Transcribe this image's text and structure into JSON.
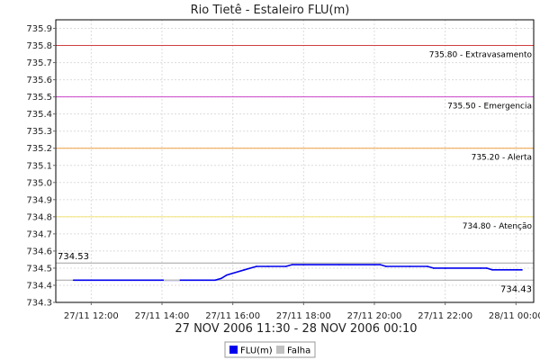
{
  "chart_data": {
    "type": "line",
    "title": "Rio Tietê - Estaleiro FLU(m)",
    "subtitle": "27 NOV 2006 11:30 - 28 NOV 2006 00:10",
    "xlabel": "",
    "ylabel": "",
    "ylim": [
      734.3,
      735.95
    ],
    "y_ticks": [
      "734.3",
      "734.4",
      "734.5",
      "734.6",
      "734.7",
      "734.8",
      "734.9",
      "735.0",
      "735.1",
      "735.2",
      "735.3",
      "735.4",
      "735.5",
      "735.6",
      "735.7",
      "735.8",
      "735.9"
    ],
    "x_ticks": [
      "27/11 12:00",
      "27/11 14:00",
      "27/11 16:00",
      "27/11 18:00",
      "27/11 20:00",
      "27/11 22:00",
      "28/11 00:00"
    ],
    "grid": true,
    "legend_placement": "bottom-center",
    "legend": [
      {
        "name": "FLU(m)",
        "color": "#0000ee"
      },
      {
        "name": "Falha",
        "color": "#c0c0c0"
      }
    ],
    "thresholds": [
      {
        "value": 735.8,
        "label": "735.80 - Extravasamento",
        "color": "#d04040"
      },
      {
        "value": 735.5,
        "label": "735.50 - Emergencia",
        "color": "#cc44cc"
      },
      {
        "value": 735.2,
        "label": "735.20 - Alerta",
        "color": "#f0a040"
      },
      {
        "value": 734.8,
        "label": "734.80 - Atenção",
        "color": "#f0e070"
      }
    ],
    "reference_lines": [
      {
        "value": 734.53,
        "label": "734.53",
        "color": "#a0a0a0",
        "label_side": "left"
      },
      {
        "value": 734.43,
        "label": "734.43",
        "color": "#a0a0a0",
        "label_side": "right"
      }
    ],
    "series": [
      {
        "name": "FLU(m)",
        "color": "#0000ee",
        "points": [
          [
            11.5,
            734.43
          ],
          [
            12.0,
            734.43
          ],
          [
            13.0,
            734.43
          ],
          [
            14.0,
            734.43
          ],
          [
            14.5,
            734.43
          ],
          [
            15.5,
            734.43
          ],
          [
            15.67,
            734.44
          ],
          [
            15.83,
            734.46
          ],
          [
            16.0,
            734.47
          ],
          [
            16.33,
            734.49
          ],
          [
            16.67,
            734.51
          ],
          [
            17.0,
            734.51
          ],
          [
            17.5,
            734.51
          ],
          [
            17.67,
            734.52
          ],
          [
            18.0,
            734.52
          ],
          [
            19.0,
            734.52
          ],
          [
            20.0,
            734.52
          ],
          [
            20.17,
            734.52
          ],
          [
            20.33,
            734.51
          ],
          [
            21.0,
            734.51
          ],
          [
            21.5,
            734.51
          ],
          [
            21.67,
            734.5
          ],
          [
            22.0,
            734.5
          ],
          [
            23.0,
            734.5
          ],
          [
            23.17,
            734.5
          ],
          [
            23.33,
            734.49
          ],
          [
            24.0,
            734.49
          ],
          [
            24.17,
            734.49
          ]
        ]
      }
    ],
    "falha_segments": [
      [
        14.05,
        14.5
      ]
    ]
  }
}
